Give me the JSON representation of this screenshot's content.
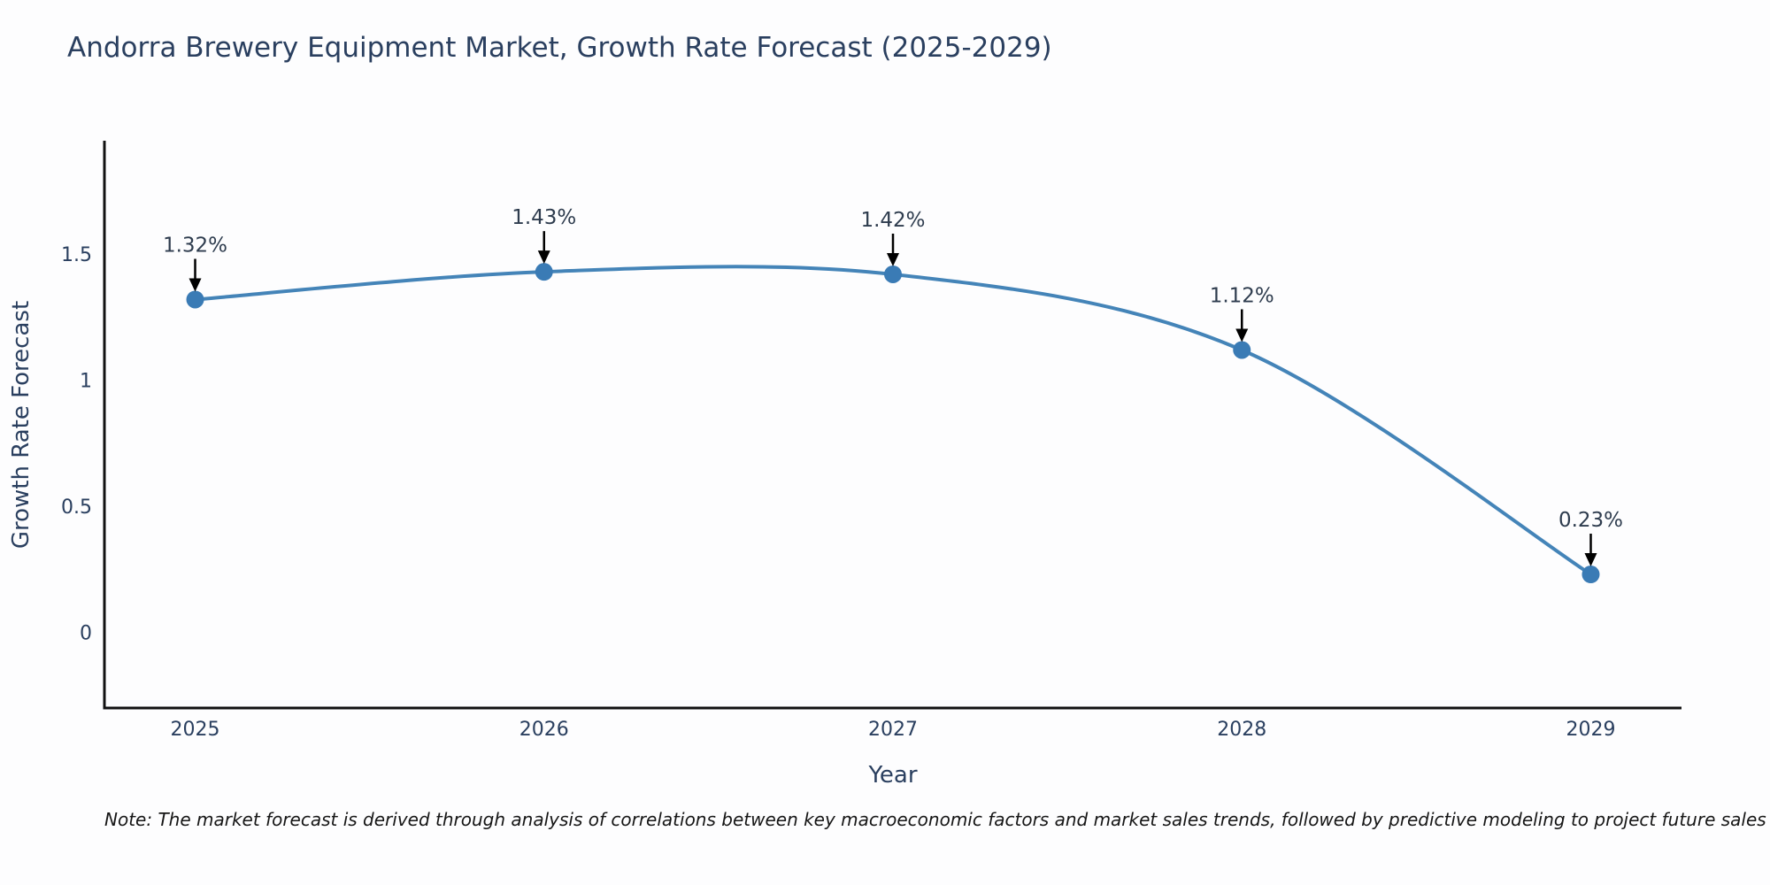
{
  "title": "Andorra Brewery Equipment Market, Growth Rate Forecast (2025-2029)",
  "note": "Note: The market forecast is derived through analysis of correlations between key macroeconomic factors and market sales trends, followed by predictive modeling to project future sales",
  "chart_data": {
    "type": "line",
    "title": "Andorra Brewery Equipment Market, Growth Rate Forecast (2025-2029)",
    "xlabel": "Year",
    "ylabel": "Growth Rate Forecast",
    "x": [
      2025,
      2026,
      2027,
      2028,
      2029
    ],
    "xtick_labels": [
      "2025",
      "2026",
      "2027",
      "2028",
      "2029"
    ],
    "values": [
      1.32,
      1.43,
      1.42,
      1.12,
      0.23
    ],
    "point_labels": [
      "1.32%",
      "1.43%",
      "1.42%",
      "1.12%",
      "0.23%"
    ],
    "yticks": [
      0,
      0.5,
      1,
      1.5
    ],
    "ytick_labels": [
      "0",
      "0.5",
      "1",
      "1.5"
    ],
    "xlim": [
      2024.74,
      2029.26
    ],
    "ylim": [
      -0.3,
      1.95
    ],
    "line_shape": "spline",
    "grid": false,
    "legend": false,
    "colors": {
      "line": "#4484b8",
      "marker": "#3a7bb5",
      "axis": "#111111",
      "text": "#2a3f5f",
      "annotation_text": "#2e3c4e",
      "annotation_arrow": "#000000",
      "background": "#fdfdfe"
    }
  }
}
